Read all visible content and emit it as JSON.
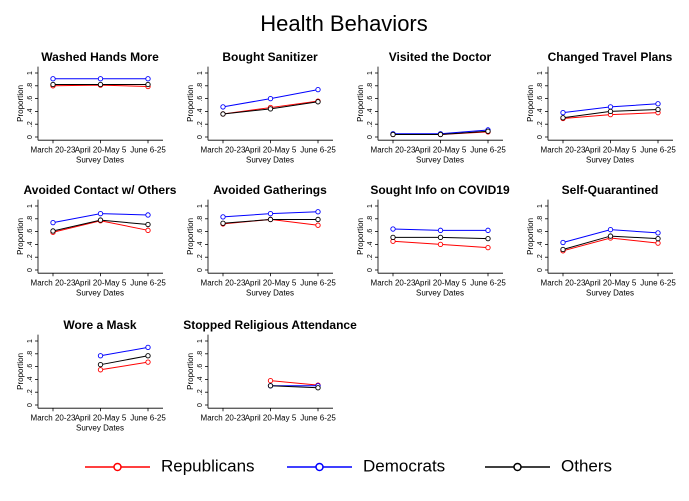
{
  "title": "Health Behaviors",
  "chart_data": [
    {
      "type": "line",
      "title": "Washed Hands More",
      "xlabel": "Survey Dates",
      "ylabel": "Proportion",
      "categories": [
        "March 20-23",
        "April 20-May 5",
        "June 6-25"
      ],
      "ylim": [
        -0.05,
        1.1
      ],
      "yticks": [
        0,
        {
          "value": 0.2,
          "label": ".2"
        },
        {
          "value": 0.4,
          "label": ".4"
        },
        {
          "value": 0.6,
          "label": ".6"
        },
        {
          "value": 0.8,
          "label": ".8"
        },
        1
      ],
      "series": [
        {
          "name": "Republicans",
          "color": "#ff0000",
          "values": [
            0.8,
            0.81,
            0.79
          ]
        },
        {
          "name": "Democrats",
          "color": "#0000ff",
          "values": [
            0.91,
            0.91,
            0.91
          ]
        },
        {
          "name": "Others",
          "color": "#000000",
          "values": [
            0.82,
            0.82,
            0.82
          ]
        }
      ]
    },
    {
      "type": "line",
      "title": "Bought Sanitizer",
      "xlabel": "Survey Dates",
      "ylabel": "Proportion",
      "categories": [
        "March 20-23",
        "April 20-May 5",
        "June 6-25"
      ],
      "ylim": [
        -0.05,
        1.1
      ],
      "yticks": [
        0,
        {
          "value": 0.2,
          "label": ".2"
        },
        {
          "value": 0.4,
          "label": ".4"
        },
        {
          "value": 0.6,
          "label": ".6"
        },
        {
          "value": 0.8,
          "label": ".8"
        },
        1
      ],
      "series": [
        {
          "name": "Republicans",
          "color": "#ff0000",
          "values": [
            0.36,
            0.46,
            0.56
          ]
        },
        {
          "name": "Democrats",
          "color": "#0000ff",
          "values": [
            0.47,
            0.6,
            0.74
          ]
        },
        {
          "name": "Others",
          "color": "#000000",
          "values": [
            0.36,
            0.44,
            0.55
          ]
        }
      ]
    },
    {
      "type": "line",
      "title": "Visited the Doctor",
      "xlabel": "Survey Dates",
      "ylabel": "Proportion",
      "categories": [
        "March 20-23",
        "April 20-May 5",
        "June 6-25"
      ],
      "ylim": [
        -0.05,
        1.1
      ],
      "yticks": [
        0,
        {
          "value": 0.2,
          "label": ".2"
        },
        {
          "value": 0.4,
          "label": ".4"
        },
        {
          "value": 0.6,
          "label": ".6"
        },
        {
          "value": 0.8,
          "label": ".8"
        },
        1
      ],
      "series": [
        {
          "name": "Republicans",
          "color": "#ff0000",
          "values": [
            0.04,
            0.04,
            0.08
          ]
        },
        {
          "name": "Democrats",
          "color": "#0000ff",
          "values": [
            0.05,
            0.05,
            0.11
          ]
        },
        {
          "name": "Others",
          "color": "#000000",
          "values": [
            0.04,
            0.04,
            0.09
          ]
        }
      ]
    },
    {
      "type": "line",
      "title": "Changed Travel Plans",
      "xlabel": "Survey Dates",
      "ylabel": "Proportion",
      "categories": [
        "March 20-23",
        "April 20-May 5",
        "June 6-25"
      ],
      "ylim": [
        -0.05,
        1.1
      ],
      "yticks": [
        0,
        {
          "value": 0.2,
          "label": ".2"
        },
        {
          "value": 0.4,
          "label": ".4"
        },
        {
          "value": 0.6,
          "label": ".6"
        },
        {
          "value": 0.8,
          "label": ".8"
        },
        1
      ],
      "series": [
        {
          "name": "Republicans",
          "color": "#ff0000",
          "values": [
            0.29,
            0.35,
            0.38
          ]
        },
        {
          "name": "Democrats",
          "color": "#0000ff",
          "values": [
            0.38,
            0.47,
            0.52
          ]
        },
        {
          "name": "Others",
          "color": "#000000",
          "values": [
            0.3,
            0.4,
            0.43
          ]
        }
      ]
    },
    {
      "type": "line",
      "title": "Avoided Contact w/ Others",
      "xlabel": "Survey Dates",
      "ylabel": "Proportion",
      "categories": [
        "March 20-23",
        "April 20-May 5",
        "June 6-25"
      ],
      "ylim": [
        -0.05,
        1.1
      ],
      "yticks": [
        0,
        {
          "value": 0.2,
          "label": ".2"
        },
        {
          "value": 0.4,
          "label": ".4"
        },
        {
          "value": 0.6,
          "label": ".6"
        },
        {
          "value": 0.8,
          "label": ".8"
        },
        1
      ],
      "series": [
        {
          "name": "Republicans",
          "color": "#ff0000",
          "values": [
            0.59,
            0.77,
            0.62
          ]
        },
        {
          "name": "Democrats",
          "color": "#0000ff",
          "values": [
            0.74,
            0.88,
            0.86
          ]
        },
        {
          "name": "Others",
          "color": "#000000",
          "values": [
            0.61,
            0.78,
            0.71
          ]
        }
      ]
    },
    {
      "type": "line",
      "title": "Avoided Gatherings",
      "xlabel": "Survey Dates",
      "ylabel": "Proportion",
      "categories": [
        "March 20-23",
        "April 20-May 5",
        "June 6-25"
      ],
      "ylim": [
        -0.05,
        1.1
      ],
      "yticks": [
        0,
        {
          "value": 0.2,
          "label": ".2"
        },
        {
          "value": 0.4,
          "label": ".4"
        },
        {
          "value": 0.6,
          "label": ".6"
        },
        {
          "value": 0.8,
          "label": ".8"
        },
        1
      ],
      "series": [
        {
          "name": "Republicans",
          "color": "#ff0000",
          "values": [
            0.72,
            0.79,
            0.7
          ]
        },
        {
          "name": "Democrats",
          "color": "#0000ff",
          "values": [
            0.83,
            0.88,
            0.91
          ]
        },
        {
          "name": "Others",
          "color": "#000000",
          "values": [
            0.73,
            0.79,
            0.79
          ]
        }
      ]
    },
    {
      "type": "line",
      "title": "Sought Info on COVID19",
      "xlabel": "Survey Dates",
      "ylabel": "Proportion",
      "categories": [
        "March 20-23",
        "April 20-May 5",
        "June 6-25"
      ],
      "ylim": [
        -0.05,
        1.1
      ],
      "yticks": [
        0,
        {
          "value": 0.2,
          "label": ".2"
        },
        {
          "value": 0.4,
          "label": ".4"
        },
        {
          "value": 0.6,
          "label": ".6"
        },
        {
          "value": 0.8,
          "label": ".8"
        },
        1
      ],
      "series": [
        {
          "name": "Republicans",
          "color": "#ff0000",
          "values": [
            0.45,
            0.4,
            0.35
          ]
        },
        {
          "name": "Democrats",
          "color": "#0000ff",
          "values": [
            0.64,
            0.62,
            0.62
          ]
        },
        {
          "name": "Others",
          "color": "#000000",
          "values": [
            0.51,
            0.51,
            0.49
          ]
        }
      ]
    },
    {
      "type": "line",
      "title": "Self-Quarantined",
      "xlabel": "Survey Dates",
      "ylabel": "Proportion",
      "categories": [
        "March 20-23",
        "April 20-May 5",
        "June 6-25"
      ],
      "ylim": [
        -0.05,
        1.1
      ],
      "yticks": [
        0,
        {
          "value": 0.2,
          "label": ".2"
        },
        {
          "value": 0.4,
          "label": ".4"
        },
        {
          "value": 0.6,
          "label": ".6"
        },
        {
          "value": 0.8,
          "label": ".8"
        },
        1
      ],
      "series": [
        {
          "name": "Republicans",
          "color": "#ff0000",
          "values": [
            0.3,
            0.5,
            0.42
          ]
        },
        {
          "name": "Democrats",
          "color": "#0000ff",
          "values": [
            0.43,
            0.63,
            0.58
          ]
        },
        {
          "name": "Others",
          "color": "#000000",
          "values": [
            0.32,
            0.53,
            0.49
          ]
        }
      ]
    },
    {
      "type": "line",
      "title": "Wore a Mask",
      "xlabel": "Survey Dates",
      "ylabel": "Proportion",
      "categories": [
        "March 20-23",
        "April 20-May 5",
        "June 6-25"
      ],
      "ylim": [
        -0.05,
        1.1
      ],
      "yticks": [
        0,
        {
          "value": 0.2,
          "label": ".2"
        },
        {
          "value": 0.4,
          "label": ".4"
        },
        {
          "value": 0.6,
          "label": ".6"
        },
        {
          "value": 0.8,
          "label": ".8"
        },
        1
      ],
      "series": [
        {
          "name": "Republicans",
          "color": "#ff0000",
          "values": [
            null,
            0.55,
            0.67
          ]
        },
        {
          "name": "Democrats",
          "color": "#0000ff",
          "values": [
            null,
            0.77,
            0.9
          ]
        },
        {
          "name": "Others",
          "color": "#000000",
          "values": [
            null,
            0.63,
            0.77
          ]
        }
      ]
    },
    {
      "type": "line",
      "title": "Stopped Religious Attendance",
      "ylabel": "Proportion",
      "categories": [
        "March 20-23",
        "April 20-May 5",
        "June 6-25"
      ],
      "ylim": [
        -0.05,
        1.1
      ],
      "yticks": [
        0,
        {
          "value": 0.2,
          "label": ".2"
        },
        {
          "value": 0.4,
          "label": ".4"
        },
        {
          "value": 0.6,
          "label": ".6"
        },
        {
          "value": 0.8,
          "label": ".8"
        },
        1
      ],
      "series": [
        {
          "name": "Republicans",
          "color": "#ff0000",
          "values": [
            null,
            0.38,
            0.31
          ]
        },
        {
          "name": "Democrats",
          "color": "#0000ff",
          "values": [
            null,
            0.3,
            0.3
          ]
        },
        {
          "name": "Others",
          "color": "#000000",
          "values": [
            null,
            0.3,
            0.27
          ]
        }
      ]
    }
  ]
}
